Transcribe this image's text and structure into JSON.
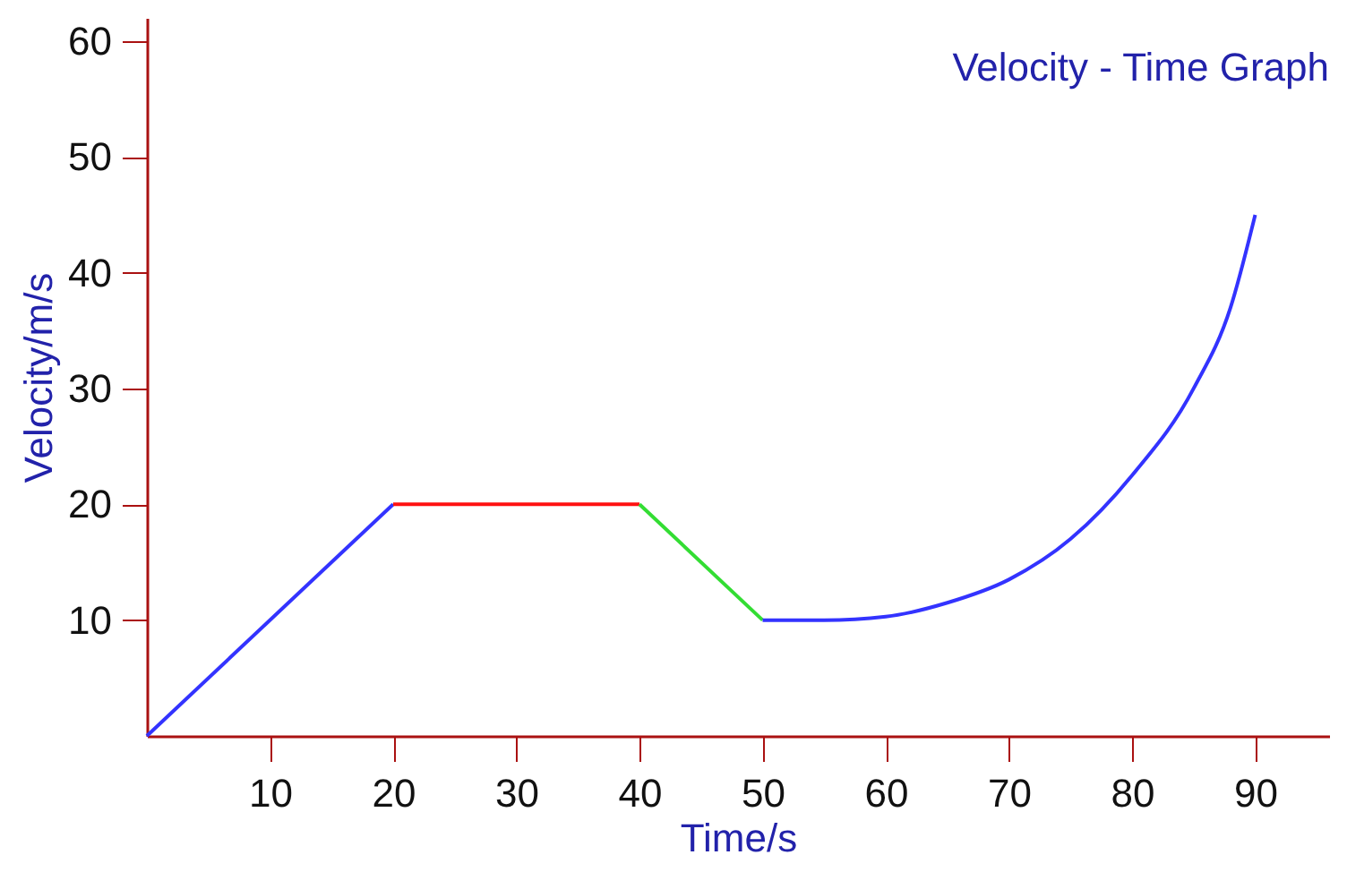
{
  "chart_data": {
    "type": "line",
    "title": "Velocity - Time Graph",
    "xlabel": "Time/s",
    "ylabel": "Velocity/m/s",
    "xlim": [
      0,
      96
    ],
    "xticks": [
      10,
      20,
      30,
      40,
      50,
      60,
      70,
      80,
      90
    ],
    "ylim": [
      0,
      62
    ],
    "yticks": [
      10,
      20,
      30,
      40,
      50,
      60
    ],
    "grid": false,
    "legend": false,
    "marker": "none",
    "line_style": "solid",
    "series": [
      {
        "color": "#3333ff",
        "x": [
          0,
          20
        ],
        "values": [
          0,
          20
        ]
      },
      {
        "color": "#ff1111",
        "x": [
          20,
          40
        ],
        "values": [
          20,
          20
        ]
      },
      {
        "color": "#33dd33",
        "x": [
          40,
          50
        ],
        "values": [
          20,
          10
        ]
      },
      {
        "color": "#3333ff",
        "x": [
          50,
          55,
          60,
          65,
          70,
          75,
          80,
          85,
          88,
          90
        ],
        "values": [
          10,
          10,
          10.3,
          11.5,
          13.5,
          17,
          22.5,
          30,
          37,
          45
        ]
      }
    ]
  }
}
